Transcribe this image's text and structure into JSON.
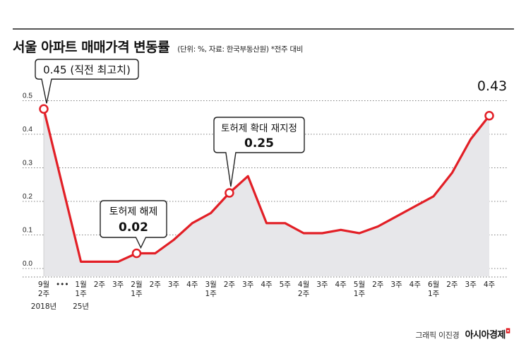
{
  "title": "서울 아파트 매매가격 변동률",
  "subtitle": "(단위: %, 자료: 한국부동산원) *전주 대비",
  "footer": {
    "credit": "그래픽 이진경",
    "brand": "아시아경제"
  },
  "colors": {
    "line": "#e21f26",
    "area": "#e7e7ea",
    "grid": "#555555"
  },
  "chart_data": {
    "type": "area",
    "y_ticks": [
      "0.5",
      "0.4",
      "0.3",
      "0.2",
      "0.1",
      "0.0"
    ],
    "ylim": [
      -0.02,
      0.5
    ],
    "grid": true,
    "x_labels": [
      [
        "9월",
        "2주"
      ],
      [
        "•••"
      ],
      [
        "1월",
        "1주"
      ],
      [
        "2주"
      ],
      [
        "3주"
      ],
      [
        "2월",
        "1주"
      ],
      [
        "2주"
      ],
      [
        "3주"
      ],
      [
        "4주"
      ],
      [
        "3월",
        "1주"
      ],
      [
        "2주"
      ],
      [
        "3주"
      ],
      [
        "4주"
      ],
      [
        "5주"
      ],
      [
        "4월",
        "2주"
      ],
      [
        "3주"
      ],
      [
        "4주"
      ],
      [
        "5월",
        "1주"
      ],
      [
        "2주"
      ],
      [
        "3주"
      ],
      [
        "4주"
      ],
      [
        "6월",
        "1주"
      ],
      [
        "2주"
      ],
      [
        "3주"
      ],
      [
        "4주"
      ]
    ],
    "year_labels": [
      "2018년",
      "25년"
    ],
    "values": [
      0.45,
      -0.005,
      -0.005,
      -0.005,
      0.02,
      0.02,
      0.06,
      0.11,
      0.14,
      0.2,
      0.25,
      0.11,
      0.11,
      0.08,
      0.08,
      0.09,
      0.08,
      0.1,
      0.13,
      0.16,
      0.19,
      0.26,
      0.36,
      0.43
    ],
    "callouts": [
      {
        "label": "0.45 (직전 최고치)"
      },
      {
        "label": "토허제 해제",
        "value": "0.02"
      },
      {
        "label": "토허제 확대 재지정",
        "value": "0.25"
      },
      {
        "value": "0.43"
      }
    ]
  }
}
